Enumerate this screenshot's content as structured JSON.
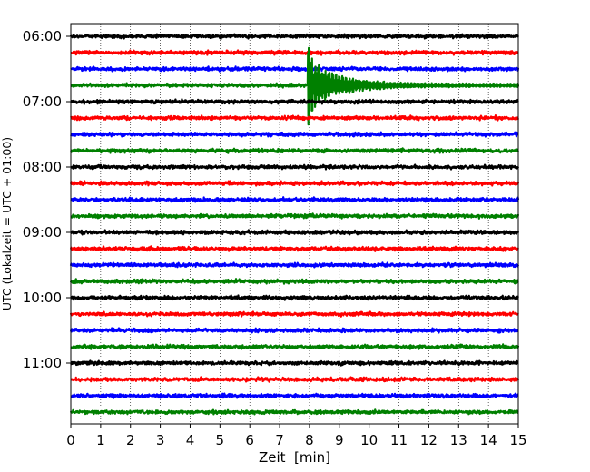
{
  "chart_data": {
    "type": "line",
    "title": "",
    "xlabel": "Zeit  [min]",
    "ylabel": "UTC (Lokalzeit = UTC + 01:00)",
    "xlim": [
      0,
      15
    ],
    "x_ticks": [
      "0",
      "1",
      "2",
      "3",
      "4",
      "5",
      "6",
      "7",
      "8",
      "9",
      "10",
      "11",
      "12",
      "13",
      "14",
      "15"
    ],
    "y_ticks": [
      "06:00",
      "07:00",
      "08:00",
      "09:00",
      "10:00",
      "11:00"
    ],
    "grid": "x-dotted",
    "trace_interval_minutes": 15,
    "trace_colors": [
      "#000000",
      "#ff0000",
      "#0000ff",
      "#008000"
    ],
    "rows": [
      {
        "start": "06:00",
        "color": "#000000"
      },
      {
        "start": "06:15",
        "color": "#ff0000"
      },
      {
        "start": "06:30",
        "color": "#0000ff"
      },
      {
        "start": "06:45",
        "color": "#008000",
        "event": {
          "onset_min": 7.95,
          "peak_amplitude": 1.0,
          "decay_end_min": 12.0
        }
      },
      {
        "start": "07:00",
        "color": "#000000"
      },
      {
        "start": "07:15",
        "color": "#ff0000"
      },
      {
        "start": "07:30",
        "color": "#0000ff"
      },
      {
        "start": "07:45",
        "color": "#008000"
      },
      {
        "start": "08:00",
        "color": "#000000"
      },
      {
        "start": "08:15",
        "color": "#ff0000"
      },
      {
        "start": "08:30",
        "color": "#0000ff"
      },
      {
        "start": "08:45",
        "color": "#008000"
      },
      {
        "start": "09:00",
        "color": "#000000"
      },
      {
        "start": "09:15",
        "color": "#ff0000"
      },
      {
        "start": "09:30",
        "color": "#0000ff"
      },
      {
        "start": "09:45",
        "color": "#008000"
      },
      {
        "start": "10:00",
        "color": "#000000"
      },
      {
        "start": "10:15",
        "color": "#ff0000"
      },
      {
        "start": "10:30",
        "color": "#0000ff"
      },
      {
        "start": "10:45",
        "color": "#008000"
      },
      {
        "start": "11:00",
        "color": "#000000"
      },
      {
        "start": "11:15",
        "color": "#ff0000"
      },
      {
        "start": "11:30",
        "color": "#0000ff"
      },
      {
        "start": "11:45",
        "color": "#008000"
      }
    ]
  }
}
